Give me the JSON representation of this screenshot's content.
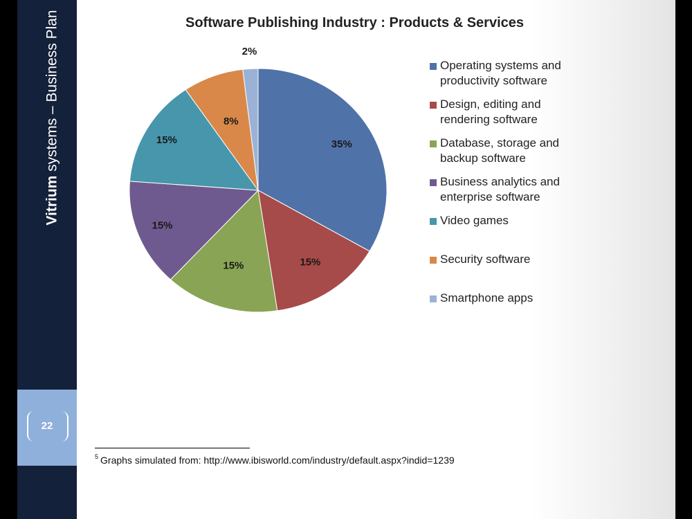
{
  "sidebar": {
    "brand": "Vitrium",
    "title_rest": " systems – Business Plan",
    "page_number": "22"
  },
  "chart_data": {
    "type": "pie",
    "title": "Software Publishing Industry : Products & Services",
    "legend_position": "right",
    "slices": [
      {
        "name": "Operating systems and productivity software",
        "value": 35,
        "label": "35%",
        "color": "#4f72a8"
      },
      {
        "name": "Design, editing and rendering software",
        "value": 15,
        "label": "15%",
        "color": "#a64b49"
      },
      {
        "name": "Database, storage and backup software",
        "value": 15,
        "label": "15%",
        "color": "#89a454"
      },
      {
        "name": "Business analytics and enterprise software",
        "value": 15,
        "label": "15%",
        "color": "#6f5a8f"
      },
      {
        "name": "Video games",
        "value": 15,
        "label": "15%",
        "color": "#4796ab"
      },
      {
        "name": "Security software",
        "value": 8,
        "label": "8%",
        "color": "#d9884a"
      },
      {
        "name": "Smartphone apps",
        "value": 2,
        "label": "2%",
        "color": "#9bb2d6"
      }
    ]
  },
  "footnote": {
    "marker": "5",
    "text": "Graphs simulated from: http://www.ibisworld.com/industry/default.aspx?indid=1239"
  }
}
